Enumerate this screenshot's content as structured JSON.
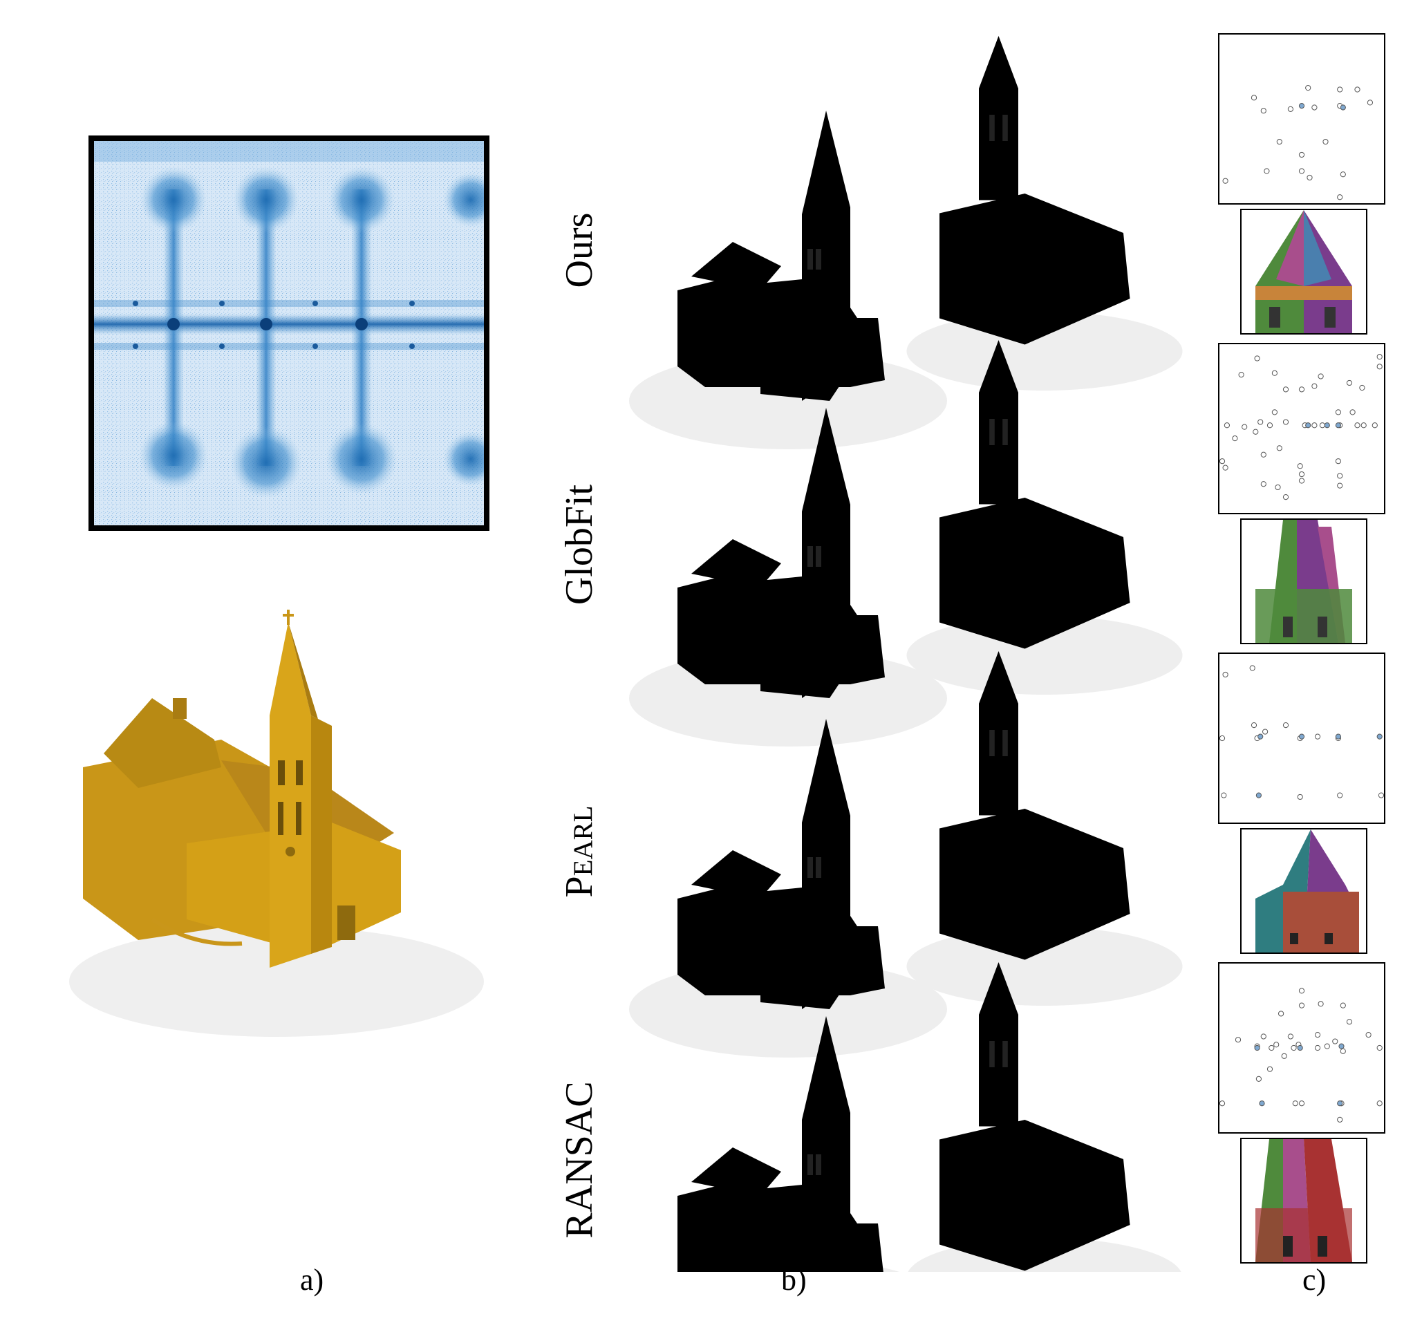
{
  "panels": {
    "a": "a)",
    "b": "b)",
    "c": "c)"
  },
  "rows": [
    {
      "name": "Ours",
      "smallcaps": false
    },
    {
      "name": "GlobFit",
      "smallcaps": false
    },
    {
      "name": "Pearl",
      "smallcaps": true
    },
    {
      "name": "RANSAC",
      "smallcaps": false
    }
  ],
  "colors": {
    "heat": "#2b7bc0",
    "church_gold": "#d4a017",
    "green": "#4f8a3c",
    "purple": "#7a3c8c",
    "magenta": "#a84e8c",
    "blue": "#4a7fae",
    "orange": "#c8843a",
    "red": "#a83232",
    "teal": "#2f7d80",
    "gray": "#6a6a6a",
    "violet": "#5a2fa0"
  },
  "scatter_plots": [
    {
      "row": "Ours",
      "points": [
        [
          0.26,
          0.45
        ],
        [
          0.43,
          0.44
        ],
        [
          0.58,
          0.43
        ],
        [
          0.74,
          0.42
        ],
        [
          0.2,
          0.37
        ],
        [
          0.54,
          0.31
        ],
        [
          0.74,
          0.32
        ],
        [
          0.85,
          0.32
        ],
        [
          0.93,
          0.4
        ],
        [
          0.36,
          0.64
        ],
        [
          0.5,
          0.72
        ],
        [
          0.65,
          0.64
        ],
        [
          0.28,
          0.82
        ],
        [
          0.5,
          0.82
        ],
        [
          0.76,
          0.84
        ],
        [
          0.55,
          0.86
        ],
        [
          0.02,
          0.88
        ],
        [
          0.74,
          0.98
        ]
      ],
      "filled": [
        [
          0.5,
          0.42
        ],
        [
          0.76,
          0.43
        ]
      ]
    },
    {
      "row": "GlobFit",
      "points": [
        [
          0.12,
          0.17
        ],
        [
          0.22,
          0.07
        ],
        [
          0.33,
          0.16
        ],
        [
          0.4,
          0.26
        ],
        [
          0.5,
          0.26
        ],
        [
          0.58,
          0.24
        ],
        [
          0.62,
          0.18
        ],
        [
          0.8,
          0.22
        ],
        [
          0.88,
          0.25
        ],
        [
          0.99,
          0.12
        ],
        [
          0.99,
          0.06
        ],
        [
          0.03,
          0.48
        ],
        [
          0.14,
          0.49
        ],
        [
          0.24,
          0.46
        ],
        [
          0.3,
          0.48
        ],
        [
          0.4,
          0.46
        ],
        [
          0.52,
          0.48
        ],
        [
          0.58,
          0.48
        ],
        [
          0.63,
          0.48
        ],
        [
          0.74,
          0.48
        ],
        [
          0.85,
          0.48
        ],
        [
          0.89,
          0.48
        ],
        [
          0.96,
          0.48
        ],
        [
          0.08,
          0.56
        ],
        [
          0.21,
          0.52
        ],
        [
          0.33,
          0.4
        ],
        [
          0.73,
          0.4
        ],
        [
          0.82,
          0.4
        ],
        [
          0.26,
          0.66
        ],
        [
          0.36,
          0.62
        ],
        [
          0.49,
          0.73
        ],
        [
          0.73,
          0.7
        ],
        [
          0.0,
          0.7
        ],
        [
          0.02,
          0.74
        ],
        [
          0.26,
          0.84
        ],
        [
          0.35,
          0.86
        ],
        [
          0.5,
          0.78
        ],
        [
          0.74,
          0.79
        ],
        [
          0.74,
          0.85
        ],
        [
          0.5,
          0.82
        ],
        [
          0.4,
          0.92
        ]
      ],
      "filled": [
        [
          0.54,
          0.48
        ],
        [
          0.66,
          0.48
        ],
        [
          0.73,
          0.48
        ]
      ]
    },
    {
      "row": "Pearl",
      "points": [
        [
          0.02,
          0.11
        ],
        [
          0.19,
          0.07
        ],
        [
          0.2,
          0.42
        ],
        [
          0.27,
          0.46
        ],
        [
          0.4,
          0.42
        ],
        [
          0.49,
          0.5
        ],
        [
          0.6,
          0.49
        ],
        [
          0.73,
          0.5
        ],
        [
          0.22,
          0.5
        ],
        [
          0.0,
          0.5
        ],
        [
          0.74,
          0.85
        ],
        [
          0.49,
          0.86
        ],
        [
          0.01,
          0.85
        ],
        [
          1.0,
          0.85
        ]
      ],
      "filled": [
        [
          0.24,
          0.49
        ],
        [
          0.5,
          0.49
        ],
        [
          0.73,
          0.49
        ],
        [
          0.99,
          0.49
        ],
        [
          0.23,
          0.85
        ]
      ]
    },
    {
      "row": "RANSAC",
      "points": [
        [
          0.5,
          0.15
        ],
        [
          0.5,
          0.24
        ],
        [
          0.37,
          0.29
        ],
        [
          0.62,
          0.23
        ],
        [
          0.76,
          0.24
        ],
        [
          0.8,
          0.34
        ],
        [
          0.43,
          0.43
        ],
        [
          0.6,
          0.42
        ],
        [
          0.71,
          0.46
        ],
        [
          0.92,
          0.42
        ],
        [
          0.1,
          0.45
        ],
        [
          0.26,
          0.43
        ],
        [
          0.22,
          0.49
        ],
        [
          0.31,
          0.5
        ],
        [
          0.34,
          0.48
        ],
        [
          0.45,
          0.5
        ],
        [
          0.48,
          0.48
        ],
        [
          0.6,
          0.5
        ],
        [
          0.66,
          0.49
        ],
        [
          0.39,
          0.55
        ],
        [
          0.3,
          0.63
        ],
        [
          0.76,
          0.52
        ],
        [
          0.99,
          0.5
        ],
        [
          0.23,
          0.69
        ],
        [
          0.0,
          0.84
        ],
        [
          0.46,
          0.84
        ],
        [
          0.5,
          0.84
        ],
        [
          0.75,
          0.84
        ],
        [
          0.99,
          0.84
        ],
        [
          0.74,
          0.94
        ]
      ],
      "filled": [
        [
          0.22,
          0.5
        ],
        [
          0.49,
          0.5
        ],
        [
          0.75,
          0.49
        ],
        [
          0.25,
          0.84
        ],
        [
          0.74,
          0.84
        ]
      ]
    }
  ]
}
